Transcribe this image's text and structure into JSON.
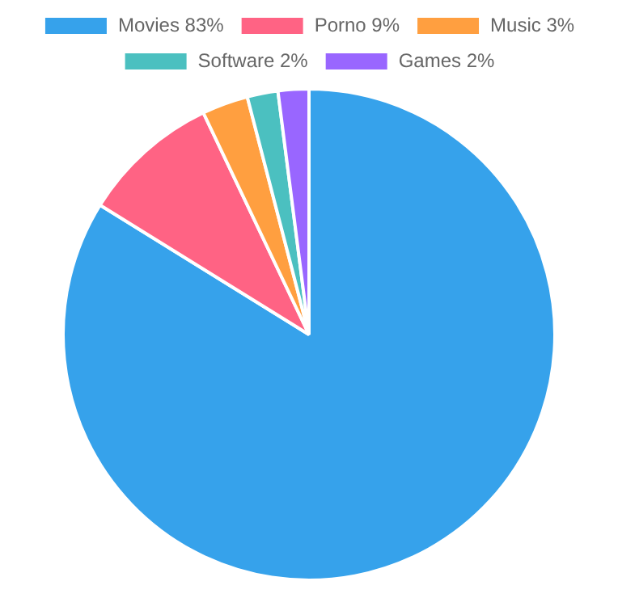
{
  "chart_data": {
    "type": "pie",
    "categories": [
      "Movies 83%",
      "Porno 9%",
      "Music 3%",
      "Software 2%",
      "Games 2%"
    ],
    "values": [
      83,
      9,
      3,
      2,
      2
    ],
    "colors": [
      "#36a2eb",
      "#ff6384",
      "#ff9f40",
      "#4bc0c0",
      "#9966ff"
    ],
    "legend": "top"
  }
}
